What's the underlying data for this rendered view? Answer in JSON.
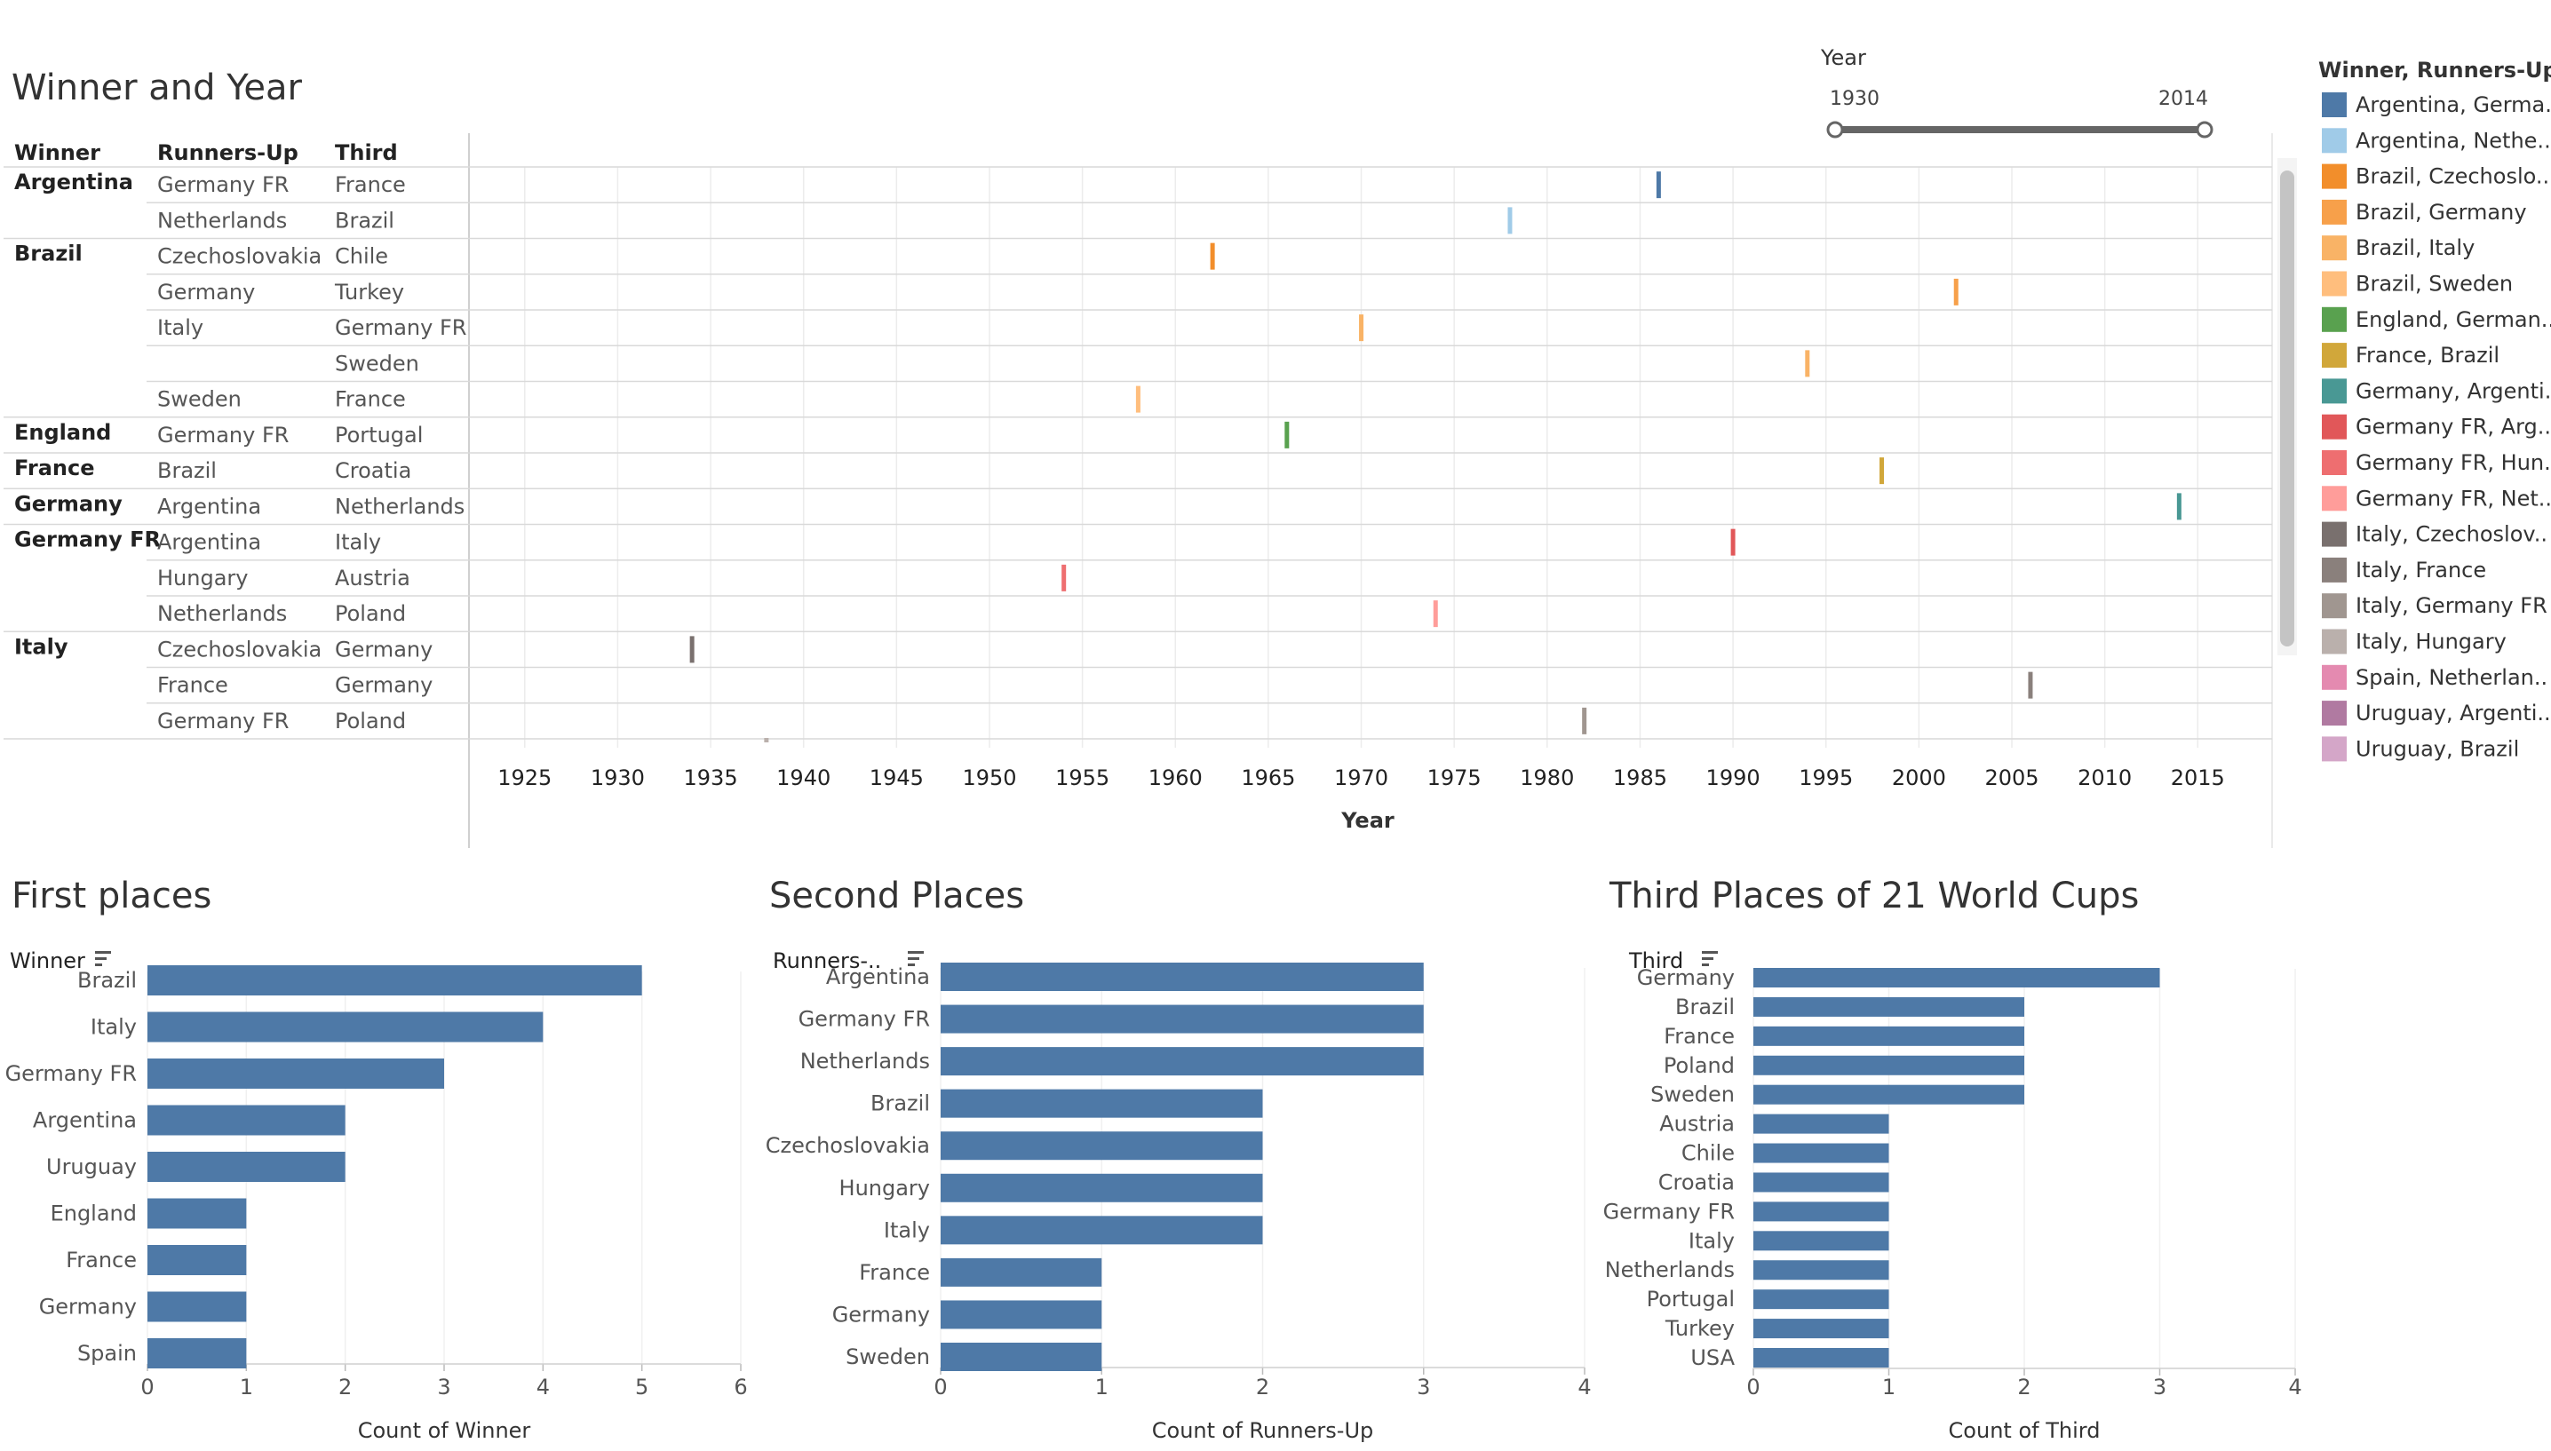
{
  "colors": {
    "bar": "#4e79a7",
    "grid": "#ececec",
    "row_line": "#d9d9d9",
    "slider": "#666666"
  },
  "year_filter": {
    "label": "Year",
    "min_label": "1930",
    "max_label": "2014",
    "min": 1930,
    "max": 2014
  },
  "legend": {
    "title": "Winner, Runners-Up",
    "items": [
      {
        "label": "Argentina, Germa..",
        "color": "#4e79a7"
      },
      {
        "label": "Argentina, Nethe..",
        "color": "#a0cbe8"
      },
      {
        "label": "Brazil, Czechoslo..",
        "color": "#f28e2b"
      },
      {
        "label": "Brazil, Germany",
        "color": "#f7a04a"
      },
      {
        "label": "Brazil, Italy",
        "color": "#f9b366"
      },
      {
        "label": "Brazil, Sweden",
        "color": "#ffbe7d"
      },
      {
        "label": "England, German..",
        "color": "#59a14f"
      },
      {
        "label": "France, Brazil",
        "color": "#d1a73a"
      },
      {
        "label": "Germany, Argenti..",
        "color": "#499894"
      },
      {
        "label": "Germany FR, Arg..",
        "color": "#e15759"
      },
      {
        "label": "Germany FR, Hun..",
        "color": "#ee6e70"
      },
      {
        "label": "Germany FR, Net..",
        "color": "#ff9d9a"
      },
      {
        "label": "Italy, Czechoslov..",
        "color": "#79706e"
      },
      {
        "label": "Italy, France",
        "color": "#8a807c"
      },
      {
        "label": "Italy, Germany FR",
        "color": "#a09690"
      },
      {
        "label": "Italy, Hungary",
        "color": "#bab0ac"
      },
      {
        "label": "Spain, Netherlan..",
        "color": "#e48ab0"
      },
      {
        "label": "Uruguay, Argenti..",
        "color": "#b07aa1"
      },
      {
        "label": "Uruguay, Brazil",
        "color": "#d4a6c8"
      }
    ]
  },
  "chart_data": [
    {
      "type": "timeline",
      "title": "Winner and Year",
      "columns": [
        "Winner",
        "Runners-Up",
        "Third"
      ],
      "xlabel": "Year",
      "xlim": [
        1922,
        2019
      ],
      "xticks": [
        1925,
        1930,
        1935,
        1940,
        1945,
        1950,
        1955,
        1960,
        1965,
        1970,
        1975,
        1980,
        1985,
        1990,
        1995,
        2000,
        2005,
        2010,
        2015
      ],
      "rows": [
        {
          "winner": "Argentina",
          "runner_up": "Germany FR",
          "third": "France",
          "year": 1986,
          "color": "#4e79a7"
        },
        {
          "winner": "",
          "runner_up": "Netherlands",
          "third": "Brazil",
          "year": 1978,
          "color": "#a0cbe8"
        },
        {
          "winner": "Brazil",
          "runner_up": "Czechoslovakia",
          "third": "Chile",
          "year": 1962,
          "color": "#f28e2b"
        },
        {
          "winner": "",
          "runner_up": "Germany",
          "third": "Turkey",
          "year": 2002,
          "color": "#f7a04a"
        },
        {
          "winner": "",
          "runner_up": "Italy",
          "third": "Germany FR",
          "year": 1970,
          "color": "#f9b366"
        },
        {
          "winner": "",
          "runner_up": "",
          "third": "Sweden",
          "year": 1994,
          "color": "#f9b366"
        },
        {
          "winner": "",
          "runner_up": "Sweden",
          "third": "France",
          "year": 1958,
          "color": "#ffbe7d"
        },
        {
          "winner": "England",
          "runner_up": "Germany FR",
          "third": "Portugal",
          "year": 1966,
          "color": "#59a14f"
        },
        {
          "winner": "France",
          "runner_up": "Brazil",
          "third": "Croatia",
          "year": 1998,
          "color": "#d1a73a"
        },
        {
          "winner": "Germany",
          "runner_up": "Argentina",
          "third": "Netherlands",
          "year": 2014,
          "color": "#499894"
        },
        {
          "winner": "Germany FR",
          "runner_up": "Argentina",
          "third": "Italy",
          "year": 1990,
          "color": "#e15759"
        },
        {
          "winner": "",
          "runner_up": "Hungary",
          "third": "Austria",
          "year": 1954,
          "color": "#ee6e70"
        },
        {
          "winner": "",
          "runner_up": "Netherlands",
          "third": "Poland",
          "year": 1974,
          "color": "#ff9d9a"
        },
        {
          "winner": "Italy",
          "runner_up": "Czechoslovakia",
          "third": "Germany",
          "year": 1934,
          "color": "#79706e"
        },
        {
          "winner": "",
          "runner_up": "France",
          "third": "Germany",
          "year": 2006,
          "color": "#8a807c"
        },
        {
          "winner": "",
          "runner_up": "Germany FR",
          "third": "Poland",
          "year": 1982,
          "color": "#a09690"
        }
      ],
      "partial_mark": {
        "year": 1938,
        "color": "#bab0ac"
      }
    },
    {
      "type": "bar",
      "title": "First places",
      "category_label": "Winner",
      "xlabel": "Count of Winner",
      "xlim": [
        0,
        6
      ],
      "xticks": [
        0,
        1,
        2,
        3,
        4,
        5,
        6
      ],
      "categories": [
        "Brazil",
        "Italy",
        "Germany FR",
        "Argentina",
        "Uruguay",
        "England",
        "France",
        "Germany",
        "Spain"
      ],
      "values": [
        5,
        4,
        3,
        2,
        2,
        1,
        1,
        1,
        1
      ]
    },
    {
      "type": "bar",
      "title": "Second Places",
      "category_label": "Runners-..",
      "xlabel": "Count of Runners-Up",
      "xlim": [
        0,
        4
      ],
      "xticks": [
        0,
        1,
        2,
        3,
        4
      ],
      "categories": [
        "Argentina",
        "Germany FR",
        "Netherlands",
        "Brazil",
        "Czechoslovakia",
        "Hungary",
        "Italy",
        "France",
        "Germany",
        "Sweden"
      ],
      "values": [
        3,
        3,
        3,
        2,
        2,
        2,
        2,
        1,
        1,
        1
      ]
    },
    {
      "type": "bar",
      "title": "Third Places of 21 World Cups",
      "category_label": "Third",
      "xlabel": "Count of Third",
      "xlim": [
        0,
        4
      ],
      "xticks": [
        0,
        1,
        2,
        3,
        4
      ],
      "categories": [
        "Germany",
        "Brazil",
        "France",
        "Poland",
        "Sweden",
        "Austria",
        "Chile",
        "Croatia",
        "Germany FR",
        "Italy",
        "Netherlands",
        "Portugal",
        "Turkey",
        "USA"
      ],
      "values": [
        3,
        2,
        2,
        2,
        2,
        1,
        1,
        1,
        1,
        1,
        1,
        1,
        1,
        1
      ]
    }
  ]
}
